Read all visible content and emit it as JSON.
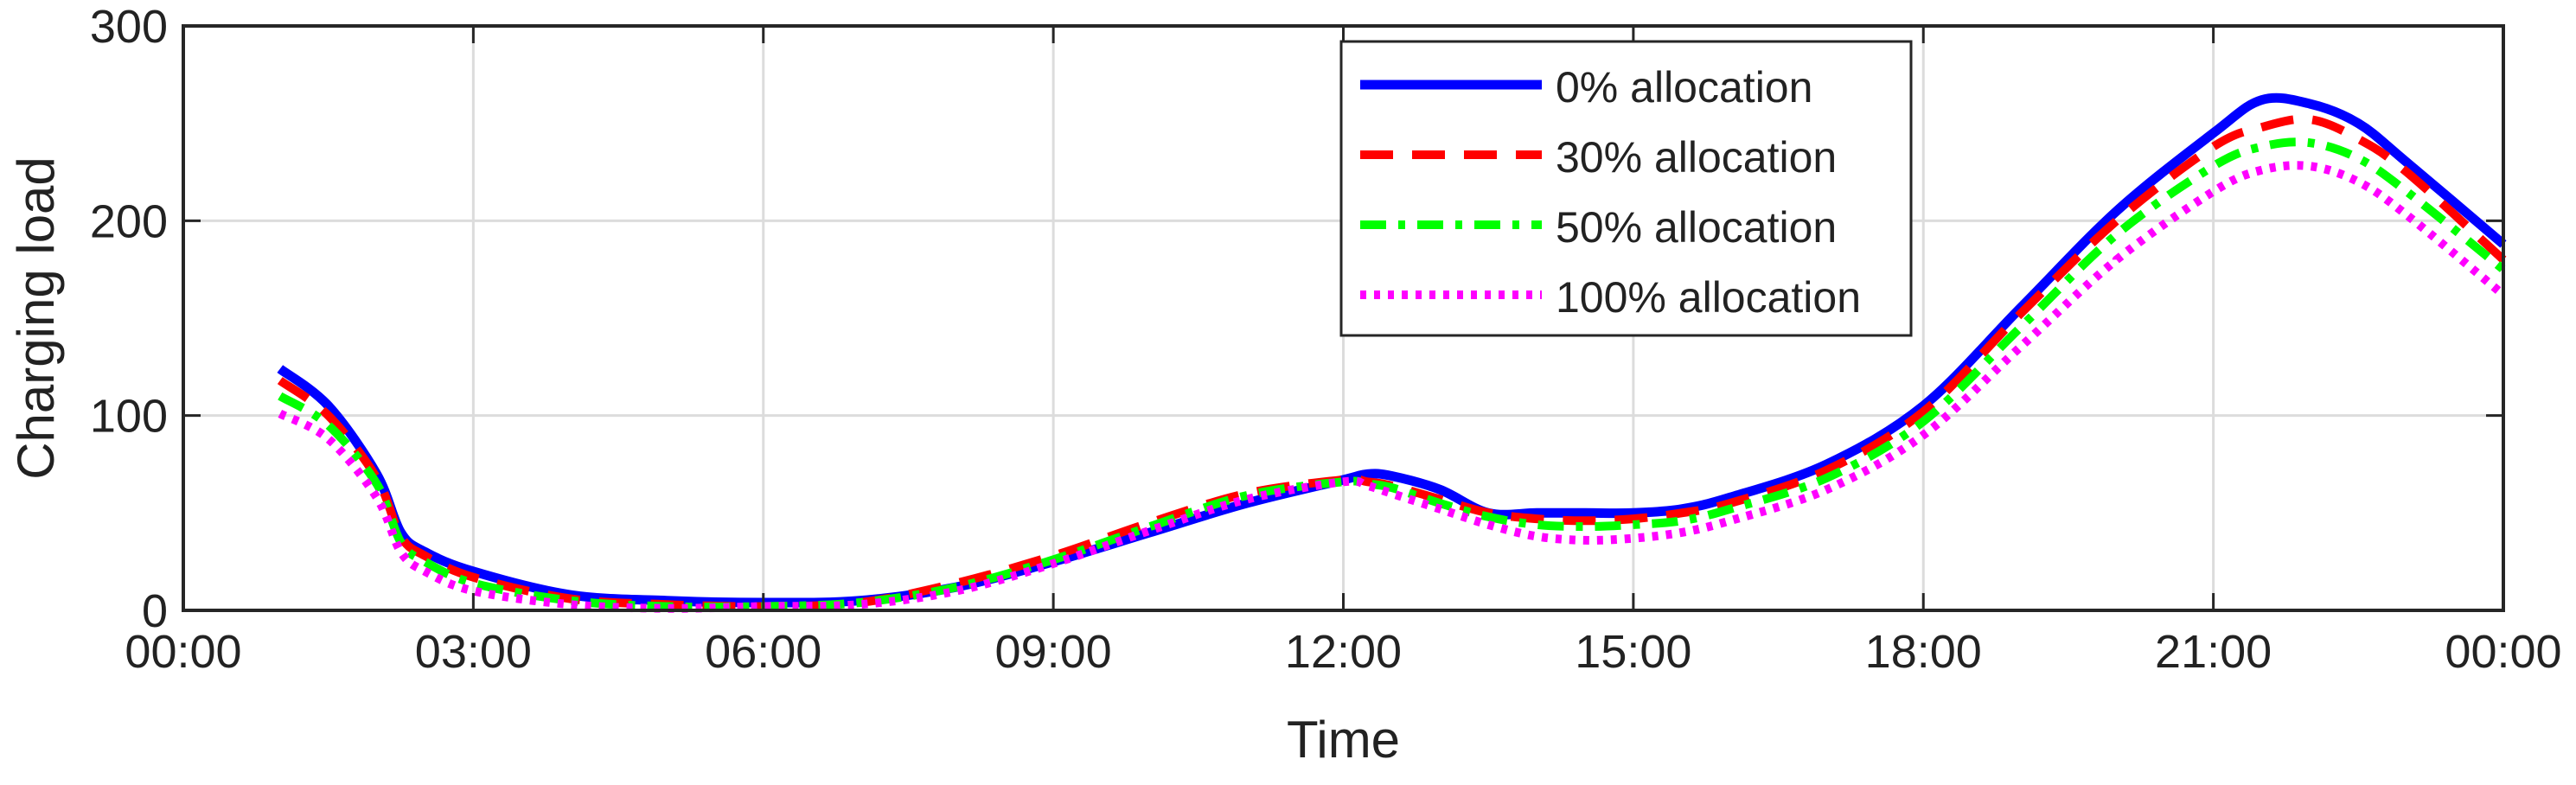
{
  "chart_data": {
    "type": "line",
    "title": "",
    "xlabel": "Time",
    "ylabel": "Charging load",
    "xlim": [
      0,
      24
    ],
    "ylim": [
      0,
      300
    ],
    "grid": true,
    "legend_position": "top-right",
    "x_ticks": [
      {
        "value": 0,
        "label": "00:00"
      },
      {
        "value": 3,
        "label": "03:00"
      },
      {
        "value": 6,
        "label": "06:00"
      },
      {
        "value": 9,
        "label": "09:00"
      },
      {
        "value": 12,
        "label": "12:00"
      },
      {
        "value": 15,
        "label": "15:00"
      },
      {
        "value": 18,
        "label": "18:00"
      },
      {
        "value": 21,
        "label": "21:00"
      },
      {
        "value": 24,
        "label": "00:00"
      }
    ],
    "y_ticks": [
      {
        "value": 0,
        "label": "0"
      },
      {
        "value": 100,
        "label": "100"
      },
      {
        "value": 200,
        "label": "200"
      },
      {
        "value": 300,
        "label": "300"
      }
    ],
    "x": [
      1,
      1.5,
      2,
      2.25,
      2.5,
      3,
      4,
      5,
      6,
      7,
      8,
      9,
      10,
      11,
      12,
      12.25,
      12.5,
      13,
      13.5,
      14,
      14.5,
      15,
      15.5,
      16,
      17,
      18,
      19,
      20,
      21,
      21.5,
      22,
      22.5,
      23,
      24
    ],
    "series": [
      {
        "name": "0% allocation",
        "color": "#0000ff",
        "dash": "solid",
        "values": [
          124,
          105,
          70,
          40,
          30,
          20,
          8,
          5,
          4,
          5,
          12,
          25,
          40,
          55,
          67,
          70,
          69,
          62,
          50,
          50,
          50,
          50,
          52,
          58,
          75,
          105,
          155,
          205,
          245,
          262,
          260,
          250,
          230,
          188
        ]
      },
      {
        "name": "30% allocation",
        "color": "#ff0000",
        "dash": "dash",
        "values": [
          118,
          100,
          68,
          38,
          28,
          17,
          6,
          3,
          2,
          4,
          14,
          28,
          45,
          60,
          67,
          66,
          64,
          57,
          50,
          47,
          46,
          47,
          50,
          55,
          72,
          102,
          152,
          200,
          238,
          248,
          252,
          242,
          225,
          180
        ]
      },
      {
        "name": "50% allocation",
        "color": "#00ff00",
        "dash": "dashdot",
        "values": [
          110,
          95,
          65,
          35,
          25,
          14,
          5,
          2,
          2,
          4,
          12,
          26,
          43,
          59,
          66,
          65,
          63,
          55,
          48,
          44,
          43,
          44,
          46,
          52,
          68,
          97,
          145,
          193,
          228,
          238,
          240,
          232,
          215,
          175
        ]
      },
      {
        "name": "100% allocation",
        "color": "#ff00ff",
        "dash": "dot",
        "values": [
          101,
          88,
          58,
          30,
          20,
          10,
          3,
          1,
          2,
          3,
          10,
          24,
          41,
          57,
          66,
          64,
          60,
          52,
          44,
          38,
          36,
          37,
          40,
          46,
          62,
          90,
          135,
          180,
          215,
          226,
          228,
          220,
          203,
          162
        ]
      }
    ]
  }
}
